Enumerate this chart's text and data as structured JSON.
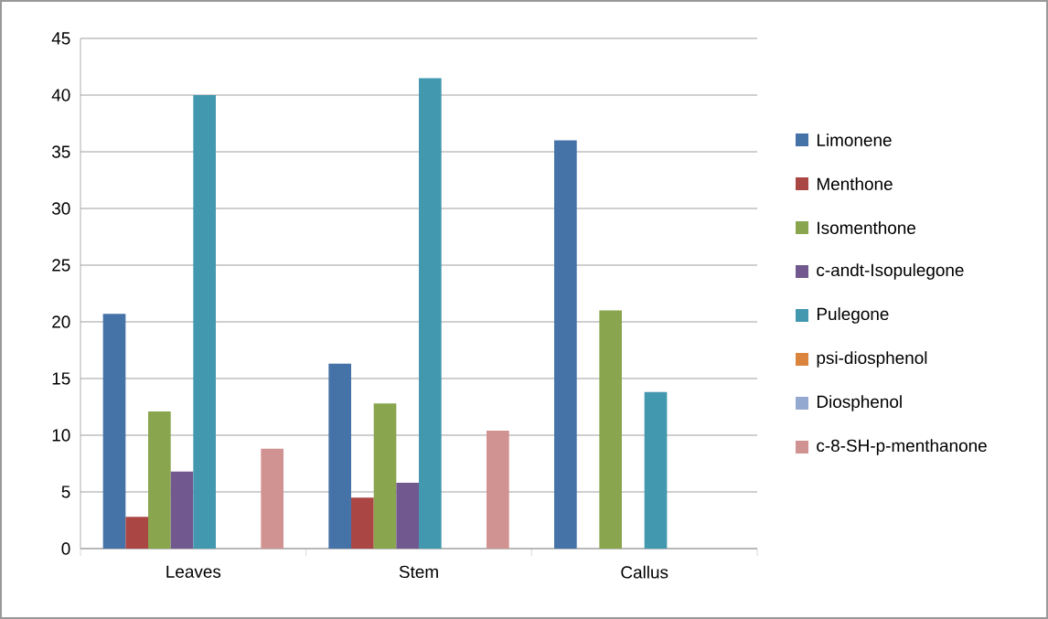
{
  "chart_data": {
    "type": "bar",
    "categories": [
      "Leaves",
      "Stem",
      "Callus"
    ],
    "series": [
      {
        "name": "Limonene",
        "color": "#4572a7",
        "values": [
          20.7,
          16.3,
          36
        ]
      },
      {
        "name": "Menthone",
        "color": "#aa4643",
        "values": [
          2.8,
          4.5,
          null
        ]
      },
      {
        "name": "Isomenthone",
        "color": "#89a54e",
        "values": [
          12.1,
          12.8,
          21
        ]
      },
      {
        "name": "c-andt-Isopulegone",
        "color": "#71588f",
        "values": [
          6.8,
          5.8,
          null
        ]
      },
      {
        "name": "Pulegone",
        "color": "#4198af",
        "values": [
          40,
          41.5,
          13.8
        ]
      },
      {
        "name": "psi-diosphenol",
        "color": "#db843d",
        "values": [
          null,
          null,
          null
        ]
      },
      {
        "name": "Diosphenol",
        "color": "#93a9cf",
        "values": [
          null,
          null,
          null
        ]
      },
      {
        "name": "c-8-SH-p-menthanone",
        "color": "#d19392",
        "values": [
          8.8,
          10.4,
          null
        ]
      }
    ],
    "ylim": [
      0,
      45
    ],
    "yticks": [
      0,
      5,
      10,
      15,
      20,
      25,
      30,
      35,
      40,
      45
    ],
    "grid": "y",
    "legend": "right"
  }
}
